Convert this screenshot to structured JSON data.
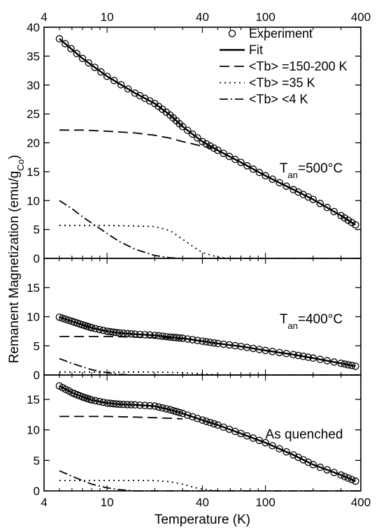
{
  "chart_data": {
    "type": "line",
    "xlabel": "Temperature (K)",
    "ylabel": "Remanent Magnetization (emu/g",
    "ylabel_sub": "Co",
    "ylabel_close": ")",
    "xscale": "log",
    "xlim": [
      4,
      400
    ],
    "x_major_ticks": [
      4,
      10,
      40,
      100,
      400
    ],
    "x_major_tick_labels": [
      "4",
      "10",
      "40",
      "100",
      "400"
    ],
    "legend": {
      "placement": "top-right",
      "entries": [
        {
          "label": "Experiment",
          "style": "circle"
        },
        {
          "label": "Fit",
          "style": "solid"
        },
        {
          "label": "<Tb> =150-200 K",
          "style": "dashed"
        },
        {
          "label": "<Tb> =35 K",
          "style": "dotted"
        },
        {
          "label": "<Tb> <4 K",
          "style": "dashdot"
        }
      ]
    },
    "panels": [
      {
        "annotation": "T",
        "annotation_sub": "an",
        "annotation_rest": "=500°C",
        "ylim": [
          0,
          40
        ],
        "yticks": [
          0,
          5,
          10,
          15,
          20,
          25,
          30,
          35,
          40
        ],
        "ytick_labels": [
          "0",
          "5",
          "10",
          "15",
          "20",
          "25",
          "30",
          "35",
          "40"
        ],
        "series": [
          {
            "name": "Experiment",
            "style": "circle",
            "points": [
              [
                5,
                38
              ],
              [
                7,
                34.6
              ],
              [
                10,
                31.5
              ],
              [
                15,
                28.6
              ],
              [
                20,
                26.8
              ],
              [
                25,
                24.8
              ],
              [
                30,
                22.8
              ],
              [
                40,
                20.2
              ],
              [
                50,
                18.7
              ],
              [
                70,
                16.6
              ],
              [
                100,
                14.3
              ],
              [
                150,
                11.9
              ],
              [
                200,
                10.2
              ],
              [
                300,
                7.4
              ],
              [
                370,
                5.8
              ]
            ]
          },
          {
            "name": "Fit",
            "style": "solid",
            "points": [
              [
                5,
                38
              ],
              [
                7,
                34.6
              ],
              [
                10,
                31.5
              ],
              [
                15,
                28.6
              ],
              [
                20,
                26.8
              ],
              [
                25,
                24.8
              ],
              [
                30,
                22.8
              ],
              [
                40,
                20.2
              ],
              [
                50,
                18.7
              ],
              [
                70,
                16.6
              ],
              [
                100,
                14.3
              ],
              [
                150,
                11.9
              ],
              [
                200,
                10.2
              ],
              [
                300,
                7.4
              ],
              [
                370,
                5.8
              ]
            ]
          },
          {
            "name": "<Tb> =150-200 K",
            "style": "dashed",
            "points": [
              [
                5,
                22.2
              ],
              [
                7,
                22.2
              ],
              [
                10,
                22
              ],
              [
                15,
                21.7
              ],
              [
                20,
                21.3
              ],
              [
                25,
                20.8
              ],
              [
                30,
                20.2
              ],
              [
                35,
                19.8
              ],
              [
                40,
                19.4
              ],
              [
                45,
                19.1
              ]
            ]
          },
          {
            "name": "<Tb> =35 K",
            "style": "dotted",
            "points": [
              [
                5,
                5.7
              ],
              [
                7,
                5.7
              ],
              [
                10,
                5.7
              ],
              [
                15,
                5.6
              ],
              [
                20,
                5.5
              ],
              [
                25,
                4.8
              ],
              [
                30,
                3.3
              ],
              [
                35,
                2
              ],
              [
                40,
                1
              ],
              [
                50,
                0.2
              ],
              [
                60,
                0
              ]
            ]
          },
          {
            "name": "<Tb> <4 K",
            "style": "dashdot",
            "points": [
              [
                5,
                10
              ],
              [
                6,
                8.6
              ],
              [
                7,
                7.2
              ],
              [
                8,
                6.1
              ],
              [
                10,
                4.3
              ],
              [
                12,
                2.9
              ],
              [
                15,
                1.6
              ],
              [
                20,
                0.5
              ],
              [
                25,
                0.1
              ],
              [
                30,
                0
              ]
            ]
          },
          {
            "name": "baseline",
            "style": "dashdot",
            "points": [
              [
                30,
                0
              ],
              [
                400,
                0
              ]
            ]
          }
        ]
      },
      {
        "annotation": "T",
        "annotation_sub": "an",
        "annotation_rest": "=400°C",
        "ylim": [
          0,
          20
        ],
        "yticks": [
          0,
          5,
          10,
          15
        ],
        "ytick_labels": [
          "0",
          "5",
          "10",
          "15"
        ],
        "series": [
          {
            "name": "Experiment",
            "style": "circle",
            "points": [
              [
                5,
                9.9
              ],
              [
                6,
                9.2
              ],
              [
                7,
                8.6
              ],
              [
                8,
                8.1
              ],
              [
                10,
                7.5
              ],
              [
                12,
                7.2
              ],
              [
                15,
                7
              ],
              [
                20,
                6.8
              ],
              [
                25,
                6.5
              ],
              [
                30,
                6.3
              ],
              [
                40,
                5.8
              ],
              [
                50,
                5.4
              ],
              [
                70,
                4.9
              ],
              [
                100,
                4.2
              ],
              [
                150,
                3.5
              ],
              [
                200,
                2.9
              ],
              [
                300,
                2
              ],
              [
                370,
                1.5
              ]
            ]
          },
          {
            "name": "Fit",
            "style": "solid",
            "points": [
              [
                5,
                9.9
              ],
              [
                6,
                9.2
              ],
              [
                7,
                8.6
              ],
              [
                8,
                8.1
              ],
              [
                10,
                7.5
              ],
              [
                12,
                7.2
              ],
              [
                15,
                7
              ],
              [
                20,
                6.8
              ],
              [
                25,
                6.5
              ],
              [
                30,
                6.3
              ],
              [
                40,
                5.8
              ],
              [
                50,
                5.4
              ],
              [
                70,
                4.9
              ],
              [
                100,
                4.2
              ],
              [
                150,
                3.5
              ],
              [
                200,
                2.9
              ],
              [
                300,
                2
              ],
              [
                370,
                1.5
              ]
            ]
          },
          {
            "name": "<Tb> =150-200 K",
            "style": "dashed",
            "points": [
              [
                5,
                6.6
              ],
              [
                10,
                6.6
              ],
              [
                15,
                6.5
              ],
              [
                20,
                6.4
              ],
              [
                25,
                6.3
              ],
              [
                30,
                6.2
              ]
            ]
          },
          {
            "name": "<Tb> =35 K",
            "style": "dotted",
            "points": [
              [
                5,
                0.5
              ],
              [
                20,
                0.5
              ],
              [
                30,
                0.4
              ],
              [
                40,
                0.2
              ],
              [
                50,
                0
              ]
            ]
          },
          {
            "name": "<Tb> <4 K",
            "style": "dashdot",
            "points": [
              [
                5,
                2.8
              ],
              [
                6,
                2
              ],
              [
                7,
                1.4
              ],
              [
                8,
                0.9
              ],
              [
                10,
                0.4
              ],
              [
                12,
                0.1
              ],
              [
                15,
                0
              ]
            ]
          },
          {
            "name": "baseline",
            "style": "dashdot",
            "points": [
              [
                15,
                0
              ],
              [
                400,
                0
              ]
            ]
          }
        ]
      },
      {
        "annotation": "As quenched",
        "annotation_sub": "",
        "annotation_rest": "",
        "ylim": [
          0,
          19
        ],
        "yticks": [
          0,
          5,
          10,
          15
        ],
        "ytick_labels": [
          "0",
          "5",
          "10",
          "15"
        ],
        "series": [
          {
            "name": "Experiment",
            "style": "circle",
            "points": [
              [
                5,
                17.2
              ],
              [
                6,
                16.1
              ],
              [
                7,
                15.4
              ],
              [
                8,
                14.9
              ],
              [
                10,
                14.4
              ],
              [
                12,
                14.2
              ],
              [
                15,
                14.1
              ],
              [
                20,
                13.9
              ],
              [
                25,
                13.3
              ],
              [
                30,
                12.7
              ],
              [
                40,
                11.6
              ],
              [
                50,
                10.8
              ],
              [
                70,
                9.4
              ],
              [
                100,
                7.9
              ],
              [
                150,
                5.9
              ],
              [
                200,
                4.3
              ],
              [
                300,
                2.6
              ],
              [
                370,
                1.6
              ]
            ]
          },
          {
            "name": "Fit",
            "style": "solid",
            "points": [
              [
                5,
                17.2
              ],
              [
                6,
                16.1
              ],
              [
                7,
                15.4
              ],
              [
                8,
                14.9
              ],
              [
                10,
                14.4
              ],
              [
                12,
                14.2
              ],
              [
                15,
                14.1
              ],
              [
                20,
                13.9
              ],
              [
                25,
                13.3
              ],
              [
                30,
                12.7
              ],
              [
                40,
                11.6
              ],
              [
                50,
                10.8
              ],
              [
                70,
                9.4
              ],
              [
                100,
                7.9
              ],
              [
                150,
                5.9
              ],
              [
                200,
                4.3
              ],
              [
                300,
                2.6
              ],
              [
                370,
                1.6
              ]
            ]
          },
          {
            "name": "<Tb> =150-200 K",
            "style": "dashed",
            "points": [
              [
                5,
                12.2
              ],
              [
                10,
                12.2
              ],
              [
                15,
                12.1
              ],
              [
                20,
                12
              ],
              [
                25,
                11.9
              ],
              [
                30,
                11.8
              ]
            ]
          },
          {
            "name": "<Tb> =35 K",
            "style": "dotted",
            "points": [
              [
                5,
                1.7
              ],
              [
                10,
                1.7
              ],
              [
                15,
                1.7
              ],
              [
                20,
                1.7
              ],
              [
                25,
                1.5
              ],
              [
                30,
                1.1
              ],
              [
                35,
                0.6
              ],
              [
                40,
                0.3
              ],
              [
                50,
                0
              ]
            ]
          },
          {
            "name": "<Tb> <4 K",
            "style": "dashdot",
            "points": [
              [
                5,
                3.3
              ],
              [
                6,
                2.4
              ],
              [
                7,
                1.7
              ],
              [
                8,
                1.1
              ],
              [
                10,
                0.5
              ],
              [
                12,
                0.2
              ],
              [
                15,
                0
              ]
            ]
          },
          {
            "name": "baseline",
            "style": "dashdot",
            "points": [
              [
                15,
                0
              ],
              [
                400,
                0
              ]
            ]
          }
        ]
      }
    ]
  }
}
